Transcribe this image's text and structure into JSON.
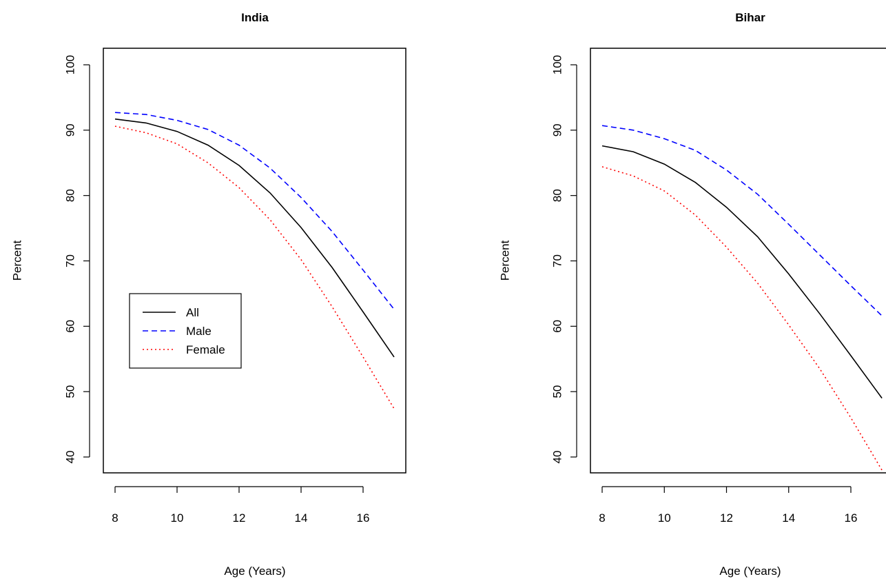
{
  "chart_data": [
    {
      "type": "line",
      "title": "India",
      "xlabel": "Age (Years)",
      "ylabel": "Percent",
      "xlim": [
        8,
        17
      ],
      "ylim": [
        40,
        100
      ],
      "xticks": [
        8,
        10,
        12,
        14,
        16
      ],
      "yticks": [
        40,
        50,
        60,
        70,
        80,
        90,
        100
      ],
      "x": [
        8,
        9,
        10,
        11,
        12,
        13,
        14,
        15,
        16,
        17
      ],
      "legend": {
        "position": "center-left"
      },
      "series": [
        {
          "name": "All",
          "color": "#000000",
          "style": "solid",
          "values": [
            91.7,
            91.1,
            89.8,
            87.7,
            84.6,
            80.4,
            75.1,
            69.0,
            62.2,
            55.3
          ]
        },
        {
          "name": "Male",
          "color": "#0000ff",
          "style": "dashed",
          "values": [
            92.7,
            92.4,
            91.5,
            90.1,
            87.7,
            84.2,
            79.7,
            74.5,
            68.6,
            62.6
          ]
        },
        {
          "name": "Female",
          "color": "#ff0000",
          "style": "dotted",
          "values": [
            90.6,
            89.6,
            87.9,
            85.0,
            81.2,
            76.3,
            70.2,
            63.0,
            55.3,
            47.4
          ]
        }
      ]
    },
    {
      "type": "line",
      "title": "Bihar",
      "xlabel": "Age (Years)",
      "ylabel": "Percent",
      "xlim": [
        8,
        17
      ],
      "ylim": [
        40,
        100
      ],
      "xticks": [
        8,
        10,
        12,
        14,
        16
      ],
      "yticks": [
        40,
        50,
        60,
        70,
        80,
        90,
        100
      ],
      "x": [
        8,
        9,
        10,
        11,
        12,
        13,
        14,
        15,
        16,
        17
      ],
      "series": [
        {
          "name": "All",
          "color": "#000000",
          "style": "solid",
          "values": [
            87.6,
            86.7,
            84.8,
            82.0,
            78.2,
            73.7,
            68.0,
            61.9,
            55.5,
            49.0
          ]
        },
        {
          "name": "Male",
          "color": "#0000ff",
          "style": "dashed",
          "values": [
            90.7,
            90.0,
            88.7,
            86.9,
            83.9,
            80.2,
            75.6,
            70.9,
            66.2,
            61.6
          ]
        },
        {
          "name": "Female",
          "color": "#ff0000",
          "style": "dotted",
          "values": [
            84.4,
            83.0,
            80.7,
            77.0,
            72.1,
            66.6,
            60.2,
            53.5,
            46.0,
            38.0
          ]
        }
      ]
    }
  ]
}
